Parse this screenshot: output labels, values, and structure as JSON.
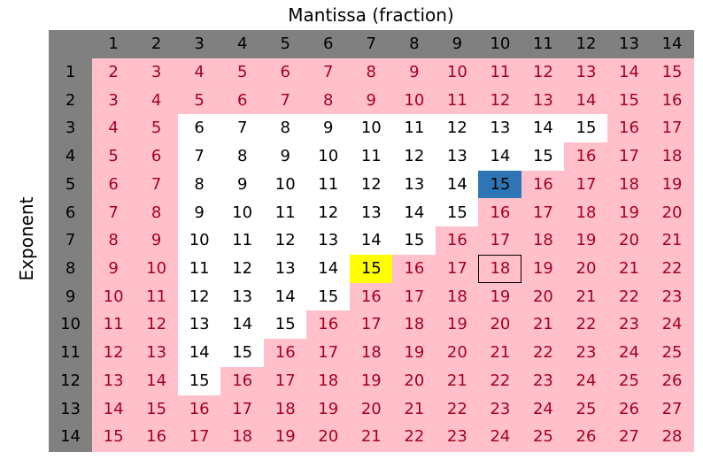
{
  "x_axis_title": "Mantissa (fraction)",
  "y_axis_title": "Exponent",
  "column_headers": [
    "1",
    "2",
    "3",
    "4",
    "5",
    "6",
    "7",
    "8",
    "9",
    "10",
    "11",
    "12",
    "13",
    "14"
  ],
  "row_headers": [
    "1",
    "2",
    "3",
    "4",
    "5",
    "6",
    "7",
    "8",
    "9",
    "10",
    "11",
    "12",
    "13",
    "14"
  ],
  "rows": [
    [
      "2",
      "3",
      "4",
      "5",
      "6",
      "7",
      "8",
      "9",
      "10",
      "11",
      "12",
      "13",
      "14",
      "15"
    ],
    [
      "3",
      "4",
      "5",
      "6",
      "7",
      "8",
      "9",
      "10",
      "11",
      "12",
      "13",
      "14",
      "15",
      "16"
    ],
    [
      "4",
      "5",
      "6",
      "7",
      "8",
      "9",
      "10",
      "11",
      "12",
      "13",
      "14",
      "15",
      "16",
      "17"
    ],
    [
      "5",
      "6",
      "7",
      "8",
      "9",
      "10",
      "11",
      "12",
      "13",
      "14",
      "15",
      "16",
      "17",
      "18"
    ],
    [
      "6",
      "7",
      "8",
      "9",
      "10",
      "11",
      "12",
      "13",
      "14",
      "15",
      "16",
      "17",
      "18",
      "19"
    ],
    [
      "7",
      "8",
      "9",
      "10",
      "11",
      "12",
      "13",
      "14",
      "15",
      "16",
      "17",
      "18",
      "19",
      "20"
    ],
    [
      "8",
      "9",
      "10",
      "11",
      "12",
      "13",
      "14",
      "15",
      "16",
      "17",
      "18",
      "19",
      "20",
      "21"
    ],
    [
      "9",
      "10",
      "11",
      "12",
      "13",
      "14",
      "15",
      "16",
      "17",
      "18",
      "19",
      "20",
      "21",
      "22"
    ],
    [
      "10",
      "11",
      "12",
      "13",
      "14",
      "15",
      "16",
      "17",
      "18",
      "19",
      "20",
      "21",
      "22",
      "23"
    ],
    [
      "11",
      "12",
      "13",
      "14",
      "15",
      "16",
      "17",
      "18",
      "19",
      "20",
      "21",
      "22",
      "23",
      "24"
    ],
    [
      "12",
      "13",
      "14",
      "15",
      "16",
      "17",
      "18",
      "19",
      "20",
      "21",
      "22",
      "23",
      "24",
      "25"
    ],
    [
      "13",
      "14",
      "15",
      "16",
      "17",
      "18",
      "19",
      "20",
      "21",
      "22",
      "23",
      "24",
      "25",
      "26"
    ],
    [
      "14",
      "15",
      "16",
      "17",
      "18",
      "19",
      "20",
      "21",
      "22",
      "23",
      "24",
      "25",
      "26",
      "27"
    ],
    [
      "15",
      "16",
      "17",
      "18",
      "19",
      "20",
      "21",
      "22",
      "23",
      "24",
      "25",
      "26",
      "27",
      "28"
    ]
  ],
  "colors": {
    "header_fill": "#808080",
    "out_of_range_fill": "#ffc0cb",
    "out_of_range_text": "#a50021",
    "in_range_fill": "#ffffff",
    "highlight_blue": "#2e75b6",
    "highlight_yellow": "#ffff00"
  },
  "highlights": [
    {
      "row": "5",
      "column": "10",
      "fill": "blue"
    },
    {
      "row": "8",
      "column": "7",
      "fill": "yellow"
    },
    {
      "row": "8",
      "column": "10",
      "fill": "outlined"
    }
  ]
}
